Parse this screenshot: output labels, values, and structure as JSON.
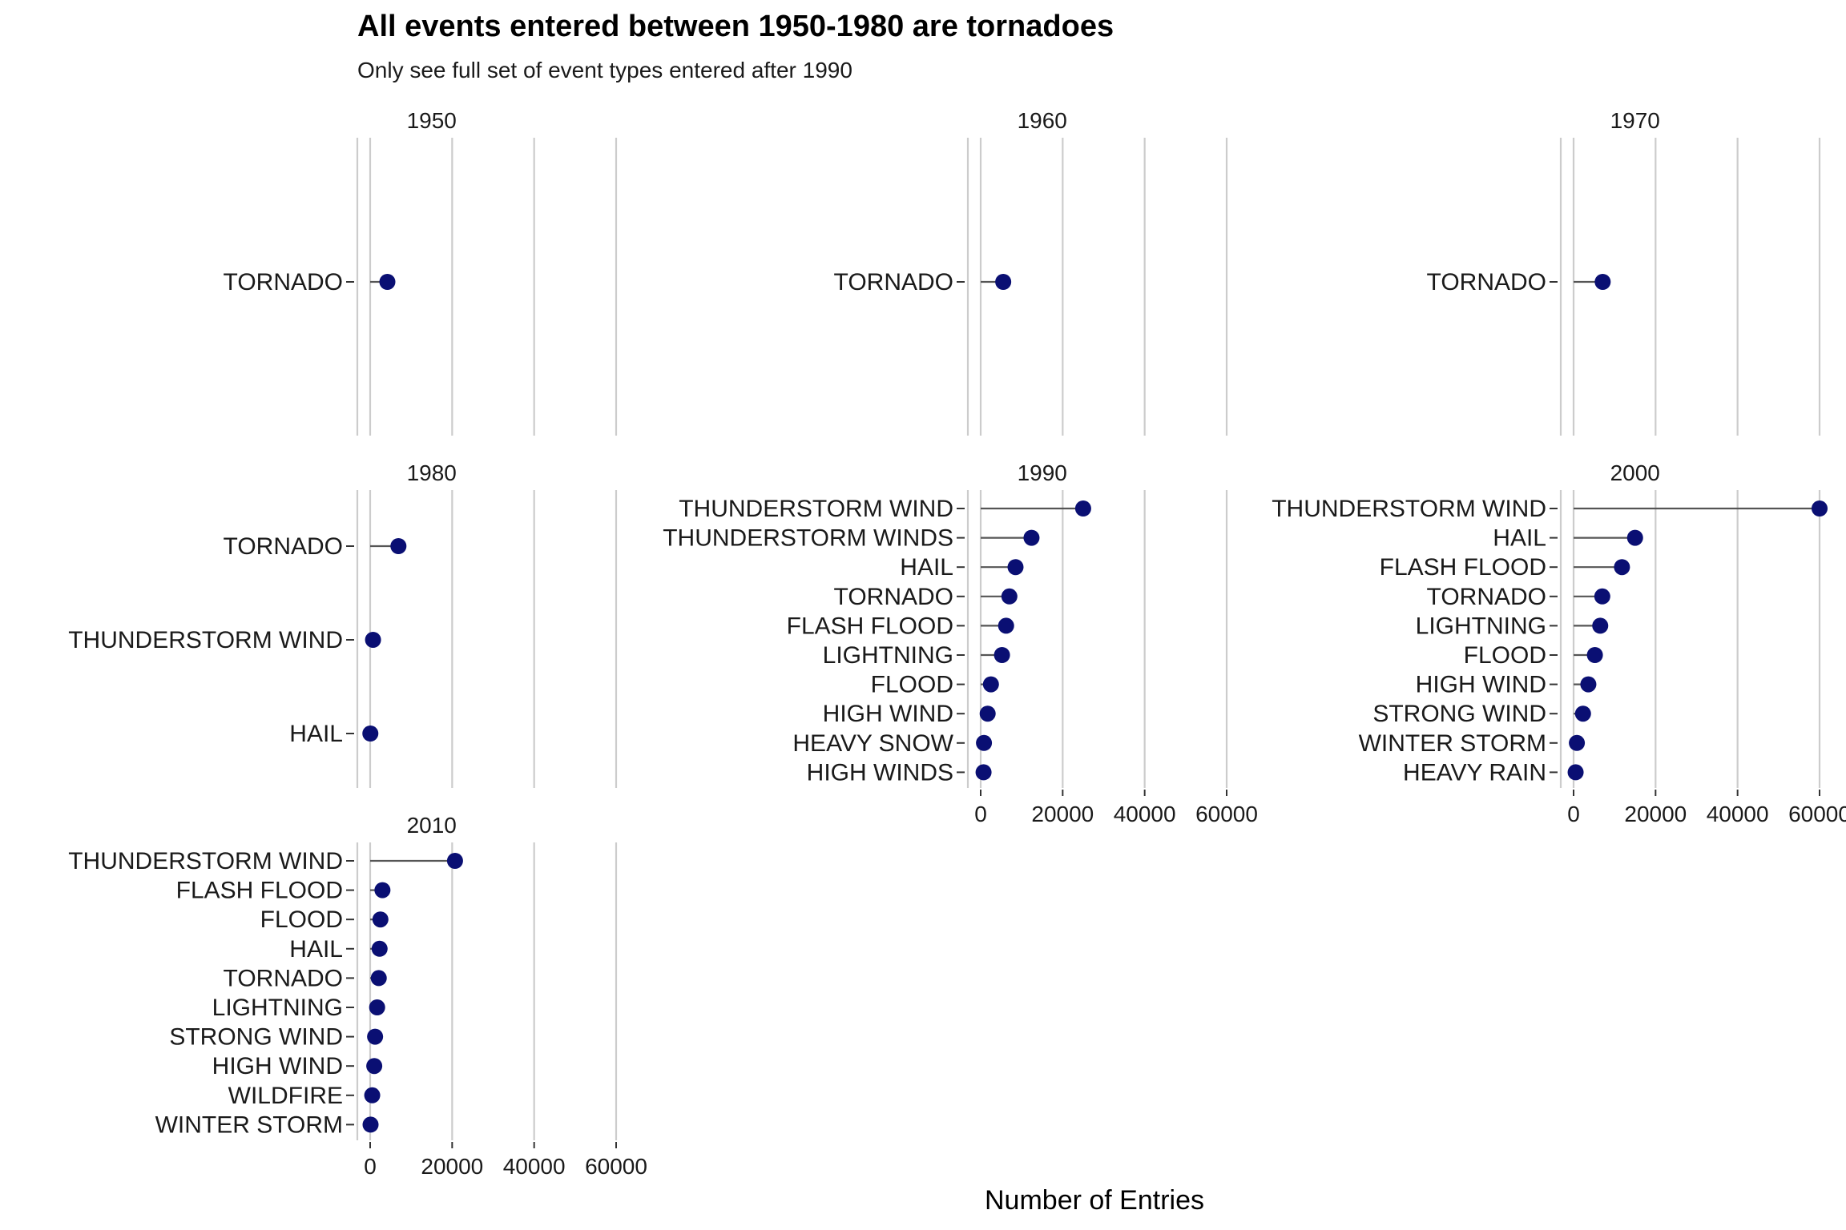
{
  "title": "All events entered between 1950-1980 are tornadoes",
  "subtitle": "Only see full set of event types entered after 1990",
  "chart_data": {
    "type": "lollipop",
    "xlabel": "Number of Entries",
    "ylabel": "",
    "xlim": [
      0,
      60000
    ],
    "x_ticks": [
      0,
      20000,
      40000,
      60000
    ],
    "x_tick_labels": [
      "0",
      "20000",
      "40000",
      "60000"
    ],
    "grid": "vertical major gridlines",
    "colors": {
      "point": "#0a0f73",
      "stem": "#555555",
      "grid": "#cccccc"
    },
    "facets": [
      {
        "label": "1950",
        "categories": [
          "TORNADO"
        ],
        "values": [
          4200
        ]
      },
      {
        "label": "1960",
        "categories": [
          "TORNADO"
        ],
        "values": [
          5500
        ]
      },
      {
        "label": "1970",
        "categories": [
          "TORNADO"
        ],
        "values": [
          7100
        ]
      },
      {
        "label": "1980",
        "categories": [
          "TORNADO",
          "THUNDERSTORM WIND",
          "HAIL"
        ],
        "values": [
          6900,
          700,
          50
        ]
      },
      {
        "label": "1990",
        "categories": [
          "THUNDERSTORM WIND",
          "THUNDERSTORM WINDS",
          "HAIL",
          "TORNADO",
          "FLASH FLOOD",
          "LIGHTNING",
          "FLOOD",
          "HIGH WIND",
          "HEAVY SNOW",
          "HIGH WINDS"
        ],
        "values": [
          25000,
          12400,
          8500,
          7000,
          6200,
          5200,
          2500,
          1700,
          800,
          700
        ]
      },
      {
        "label": "2000",
        "categories": [
          "THUNDERSTORM WIND",
          "HAIL",
          "FLASH FLOOD",
          "TORNADO",
          "LIGHTNING",
          "FLOOD",
          "HIGH WIND",
          "STRONG WIND",
          "WINTER STORM",
          "HEAVY RAIN"
        ],
        "values": [
          60000,
          15000,
          11800,
          7000,
          6500,
          5200,
          3600,
          2300,
          800,
          500
        ]
      },
      {
        "label": "2010",
        "categories": [
          "THUNDERSTORM WIND",
          "FLASH FLOOD",
          "FLOOD",
          "HAIL",
          "TORNADO",
          "LIGHTNING",
          "STRONG WIND",
          "HIGH WIND",
          "WILDFIRE",
          "WINTER STORM"
        ],
        "values": [
          20700,
          3000,
          2500,
          2300,
          2100,
          1700,
          1200,
          1000,
          500,
          100
        ]
      }
    ]
  }
}
